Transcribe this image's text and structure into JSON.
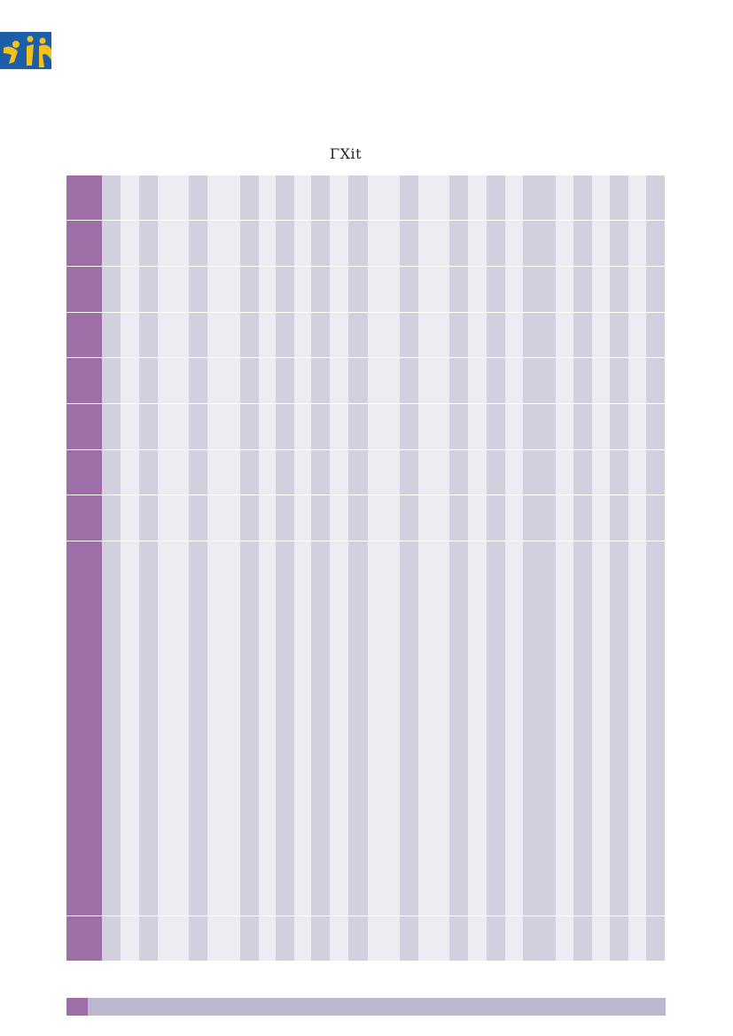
{
  "logo": {
    "name": "organization-logo",
    "bg": "#1b5fa8",
    "fg": "#f6c21a"
  },
  "header": {
    "title": "ΓΧit"
  },
  "table": {
    "header_color": "#9e6fa6",
    "dark_color": "#d2d0de",
    "light_color": "#edecf3",
    "row_count": 10,
    "column_count": 31
  },
  "footer": {
    "bar_color": "#bcb6cf",
    "accent_color": "#9e6fa6"
  }
}
